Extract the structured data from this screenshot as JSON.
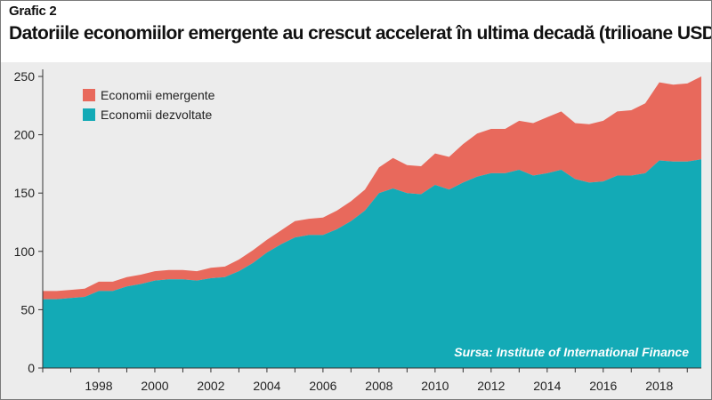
{
  "header": {
    "label": "Grafic 2",
    "title": "Datoriile economiilor emergente au crescut accelerat în ultima decadă (trilioane USD)"
  },
  "source": "Sursa: Institute of International Finance",
  "colors": {
    "emerging": "#e8695c",
    "developed": "#13aab6",
    "background": "#ececec",
    "source_text": "#ffffff"
  },
  "chart_data": {
    "type": "area",
    "stacked": true,
    "xlim": [
      1996.0,
      2019.5
    ],
    "ylim": [
      0,
      250
    ],
    "yticks": [
      0,
      50,
      100,
      150,
      200,
      250
    ],
    "xticks": [
      "1998",
      "2000",
      "2002",
      "2004",
      "2006",
      "2008",
      "2010",
      "2012",
      "2014",
      "2016",
      "2018"
    ],
    "grid": false,
    "legend_position": "top-left",
    "x": [
      1996.0,
      1996.5,
      1997.0,
      1997.5,
      1998.0,
      1998.5,
      1999.0,
      1999.5,
      2000.0,
      2000.5,
      2001.0,
      2001.5,
      2002.0,
      2002.5,
      2003.0,
      2003.5,
      2004.0,
      2004.5,
      2005.0,
      2005.5,
      2006.0,
      2006.5,
      2007.0,
      2007.5,
      2008.0,
      2008.5,
      2009.0,
      2009.5,
      2010.0,
      2010.5,
      2011.0,
      2011.5,
      2012.0,
      2012.5,
      2013.0,
      2013.5,
      2014.0,
      2014.5,
      2015.0,
      2015.5,
      2016.0,
      2016.5,
      2017.0,
      2017.5,
      2018.0,
      2018.5,
      2019.0,
      2019.5
    ],
    "series": [
      {
        "name": "Economii dezvoltate",
        "values": [
          59,
          59,
          60,
          61,
          66,
          66,
          70,
          72,
          75,
          76,
          76,
          75,
          77,
          78,
          83,
          90,
          99,
          106,
          112,
          114,
          114,
          119,
          126,
          135,
          150,
          154,
          150,
          149,
          157,
          153,
          159,
          164,
          167,
          167,
          170,
          165,
          167,
          170,
          162,
          159,
          160,
          165,
          165,
          167,
          178,
          177,
          177,
          179
        ]
      },
      {
        "name": "Economii emergente",
        "values": [
          7,
          7,
          7,
          7,
          8,
          8,
          8,
          8,
          8,
          8,
          8,
          8,
          9,
          9,
          10,
          11,
          11,
          12,
          14,
          14,
          15,
          16,
          17,
          18,
          22,
          26,
          24,
          24,
          27,
          28,
          33,
          37,
          38,
          38,
          42,
          45,
          48,
          50,
          48,
          50,
          52,
          55,
          56,
          60,
          67,
          66,
          67,
          71
        ]
      }
    ]
  }
}
